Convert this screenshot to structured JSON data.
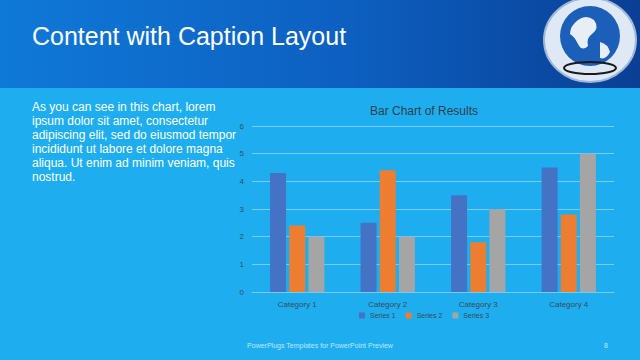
{
  "slide": {
    "title": "Content with Caption Layout",
    "caption": "As you can see in this chart, lorem ipsum dolor sit amet, consectetur adipiscing elit, sed do eiusmod tempor incididunt ut labore et dolore magna aliqua. Ut enim ad minim veniam, quis nostrud.",
    "footer": "PowerPlugs Templates for PowerPoint Preview",
    "page_number": "8"
  },
  "chart_data": {
    "type": "bar",
    "title": "Bar Chart of Results",
    "categories": [
      "Category 1",
      "Category 2",
      "Category 3",
      "Category 4"
    ],
    "series": [
      {
        "name": "Series 1",
        "color": "#4472c4",
        "values": [
          4.3,
          2.5,
          3.5,
          4.5
        ]
      },
      {
        "name": "Series 2",
        "color": "#ed7d31",
        "values": [
          2.4,
          4.4,
          1.8,
          2.8
        ]
      },
      {
        "name": "Series 3",
        "color": "#a5a5a5",
        "values": [
          2.0,
          2.0,
          3.0,
          5.0
        ]
      }
    ],
    "ylim": [
      0,
      6
    ],
    "yticks": [
      0,
      1,
      2,
      3,
      4,
      5,
      6
    ],
    "grid": true,
    "legend": "bottom"
  }
}
